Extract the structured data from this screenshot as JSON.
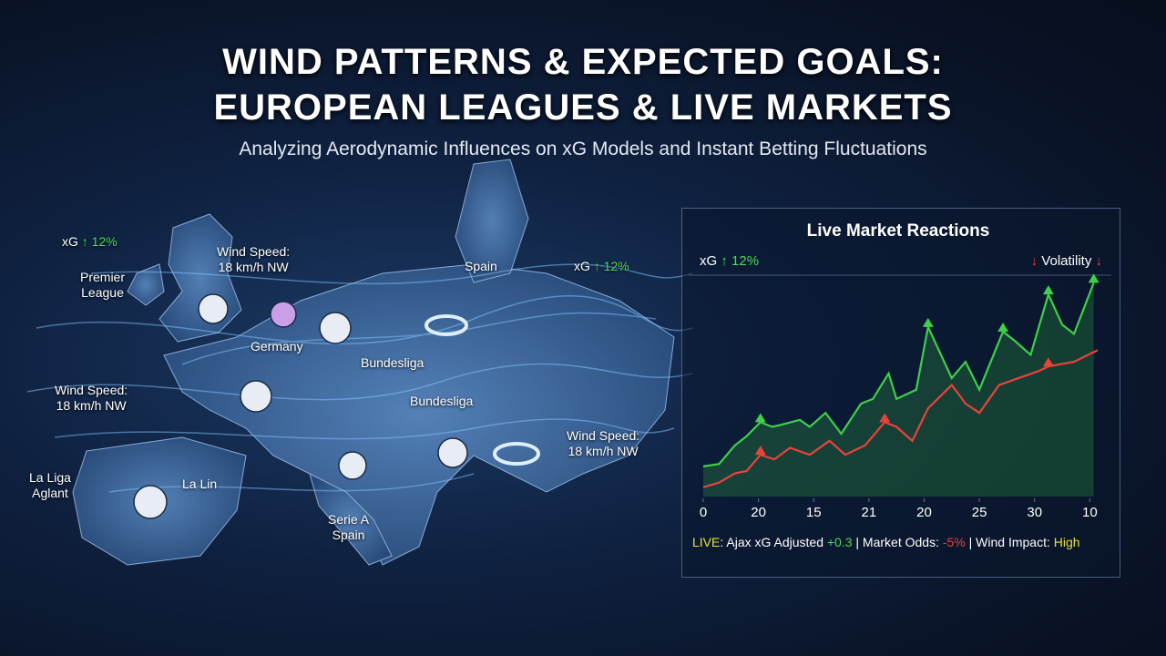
{
  "header": {
    "title_line1": "WIND PATTERNS & EXPECTED GOALS:",
    "title_line2": "EUROPEAN LEAGUES & LIVE MARKETS",
    "subtitle": "Analyzing Aerodynamic Influences on xG Models and Instant Betting Fluctuations"
  },
  "map": {
    "labels": [
      {
        "text": "xG",
        "badge": "↑ 12%"
      },
      {
        "text": "Premier\nLeague"
      },
      {
        "text": "Wind Speed:\n18 km/h NW"
      },
      {
        "text": "Wind Speed:\n18 km/h NW"
      },
      {
        "text": "Germany"
      },
      {
        "text": "Spain"
      },
      {
        "text": "xG",
        "badge": "↑ 12%"
      },
      {
        "text": "Bundesliga"
      },
      {
        "text": "Bundesliga"
      },
      {
        "text": "Wind Speed:\n18 km/h NW"
      },
      {
        "text": "La Liga\nAglant"
      },
      {
        "text": "La Lin"
      },
      {
        "text": "Serie A\nSpain"
      }
    ]
  },
  "chart_data": {
    "type": "line",
    "title": "Live Market Reactions",
    "left_note": "xG",
    "left_badge": "↑ 12%",
    "right_note": "Volatility",
    "right_arrow": "↓",
    "xlim": [
      0,
      100
    ],
    "ylim": [
      0,
      100
    ],
    "xticks": [
      0,
      {
        "value": 14,
        "label": "20"
      },
      {
        "value": 28,
        "label": "15"
      },
      {
        "value": 42,
        "label": "21"
      },
      {
        "value": 56,
        "label": "20"
      },
      {
        "value": 70,
        "label": "25"
      },
      {
        "value": 84,
        "label": "30"
      },
      {
        "value": 98,
        "label": "10"
      }
    ],
    "series": [
      {
        "color": "#3fcf4a",
        "x": [
          0,
          4,
          8,
          11,
          14.5,
          17.5,
          20,
          24.5,
          27,
          31,
          35,
          40,
          43,
          47,
          49,
          54,
          57,
          63,
          66.5,
          70,
          76,
          79,
          83,
          87.5,
          91,
          94,
          99
        ],
        "values": [
          13,
          14,
          22,
          26,
          32,
          30,
          31,
          33,
          30,
          36,
          27,
          40,
          42,
          53,
          42,
          46,
          73,
          51,
          58,
          46,
          71,
          67,
          61,
          87,
          74,
          70,
          92
        ]
      },
      {
        "color": "#e8433a",
        "x": [
          0,
          4,
          8,
          11,
          14.5,
          18,
          22,
          27,
          32,
          36,
          41,
          46,
          49,
          53,
          57,
          63,
          66.5,
          70,
          75,
          80,
          85,
          87.5,
          94,
          100
        ],
        "values": [
          4,
          6,
          10,
          11,
          18,
          16,
          21,
          18,
          24,
          18,
          22,
          32,
          30,
          24,
          38,
          48,
          40,
          36,
          48,
          51,
          54,
          56,
          58,
          63
        ]
      }
    ]
  },
  "ticker": {
    "live": "LIVE",
    "part1": ": Ajax xG Adjusted ",
    "delta": "+0.3",
    "part2": " | Market Odds: ",
    "odds": "-5%",
    "part3": " | Wind Impact: ",
    "impact": "High"
  }
}
